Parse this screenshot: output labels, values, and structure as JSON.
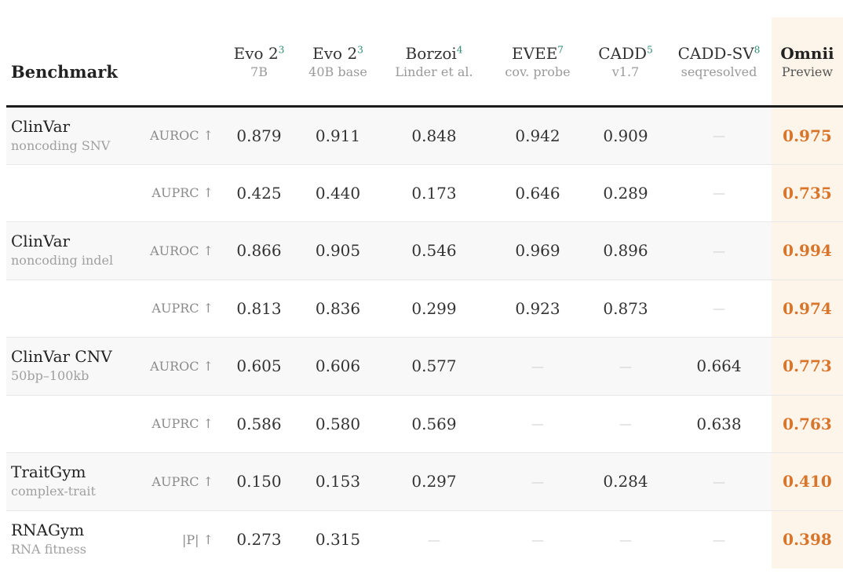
{
  "header": {
    "benchmark": "Benchmark",
    "columns": [
      {
        "name": "Evo 2",
        "ref": "3",
        "sub": "7B"
      },
      {
        "name": "Evo 2",
        "ref": "3",
        "sub": "40B base"
      },
      {
        "name": "Borzoi",
        "ref": "4",
        "sub": "Linder et al."
      },
      {
        "name": "EVEE",
        "ref": "7",
        "sub": "cov. probe"
      },
      {
        "name": "CADD",
        "ref": "5",
        "sub": "v1.7"
      },
      {
        "name": "CADD-SV",
        "ref": "8",
        "sub": "seqresolved"
      },
      {
        "name": "Omnii",
        "ref": "",
        "sub": "Preview"
      }
    ]
  },
  "rows": [
    {
      "bench": "ClinVar",
      "sub": "noncoding SNV",
      "metric": "AUROC ↑",
      "values": [
        "0.879",
        "0.911",
        "0.848",
        "0.942",
        "0.909",
        "—",
        "0.975"
      ]
    },
    {
      "bench": "",
      "sub": "",
      "metric": "AUPRC ↑",
      "values": [
        "0.425",
        "0.440",
        "0.173",
        "0.646",
        "0.289",
        "—",
        "0.735"
      ]
    },
    {
      "bench": "ClinVar",
      "sub": "noncoding indel",
      "metric": "AUROC ↑",
      "values": [
        "0.866",
        "0.905",
        "0.546",
        "0.969",
        "0.896",
        "—",
        "0.994"
      ]
    },
    {
      "bench": "",
      "sub": "",
      "metric": "AUPRC ↑",
      "values": [
        "0.813",
        "0.836",
        "0.299",
        "0.923",
        "0.873",
        "—",
        "0.974"
      ]
    },
    {
      "bench": "ClinVar CNV",
      "sub": "50bp–100kb",
      "metric": "AUROC ↑",
      "values": [
        "0.605",
        "0.606",
        "0.577",
        "—",
        "—",
        "0.664",
        "0.773"
      ]
    },
    {
      "bench": "",
      "sub": "",
      "metric": "AUPRC ↑",
      "values": [
        "0.586",
        "0.580",
        "0.569",
        "—",
        "—",
        "0.638",
        "0.763"
      ]
    },
    {
      "bench": "TraitGym",
      "sub": "complex-trait",
      "metric": "AUPRC ↑",
      "values": [
        "0.150",
        "0.153",
        "0.297",
        "—",
        "0.284",
        "—",
        "0.410"
      ]
    },
    {
      "bench": "RNAGym",
      "sub": "RNA fitness",
      "metric": "|P| ↑",
      "values": [
        "0.273",
        "0.315",
        "—",
        "—",
        "—",
        "—",
        "0.398"
      ]
    }
  ],
  "colors": {
    "highlight_text": "#d9752a",
    "highlight_bg": "#fdf5e9",
    "ref_teal": "#2e8b74"
  }
}
